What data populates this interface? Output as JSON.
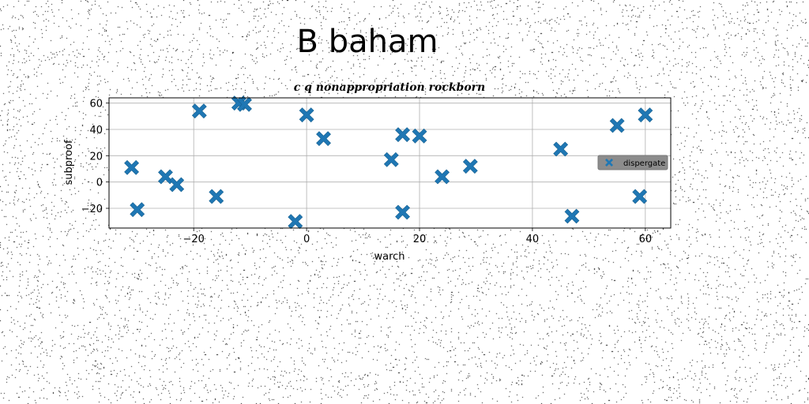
{
  "chart_data": {
    "type": "scatter",
    "suptitle": "B baham",
    "title": "c q nonappropriation rockborn",
    "xlabel": "warch",
    "ylabel": "subproof",
    "xlim": [
      -35,
      64.5
    ],
    "ylim": [
      -35,
      64
    ],
    "xticks": [
      -20,
      0,
      20,
      40,
      60
    ],
    "yticks": [
      -20,
      0,
      20,
      40,
      60
    ],
    "grid": true,
    "legend_position": "center-right",
    "series": [
      {
        "name": "dispergate",
        "marker": "X",
        "color": "#1f77b4",
        "points": [
          [
            -31,
            11
          ],
          [
            -30,
            -21
          ],
          [
            -25,
            4
          ],
          [
            -23,
            -2
          ],
          [
            -19,
            54
          ],
          [
            -16,
            -11
          ],
          [
            -12,
            60
          ],
          [
            -11,
            59
          ],
          [
            -2,
            -30
          ],
          [
            0,
            51
          ],
          [
            3,
            33
          ],
          [
            15,
            17
          ],
          [
            17,
            36
          ],
          [
            17,
            -23
          ],
          [
            20,
            35
          ],
          [
            24,
            4
          ],
          [
            29,
            12
          ],
          [
            45,
            25
          ],
          [
            47,
            -26
          ],
          [
            55,
            43
          ],
          [
            59,
            -11
          ],
          [
            60,
            51
          ]
        ]
      }
    ]
  }
}
